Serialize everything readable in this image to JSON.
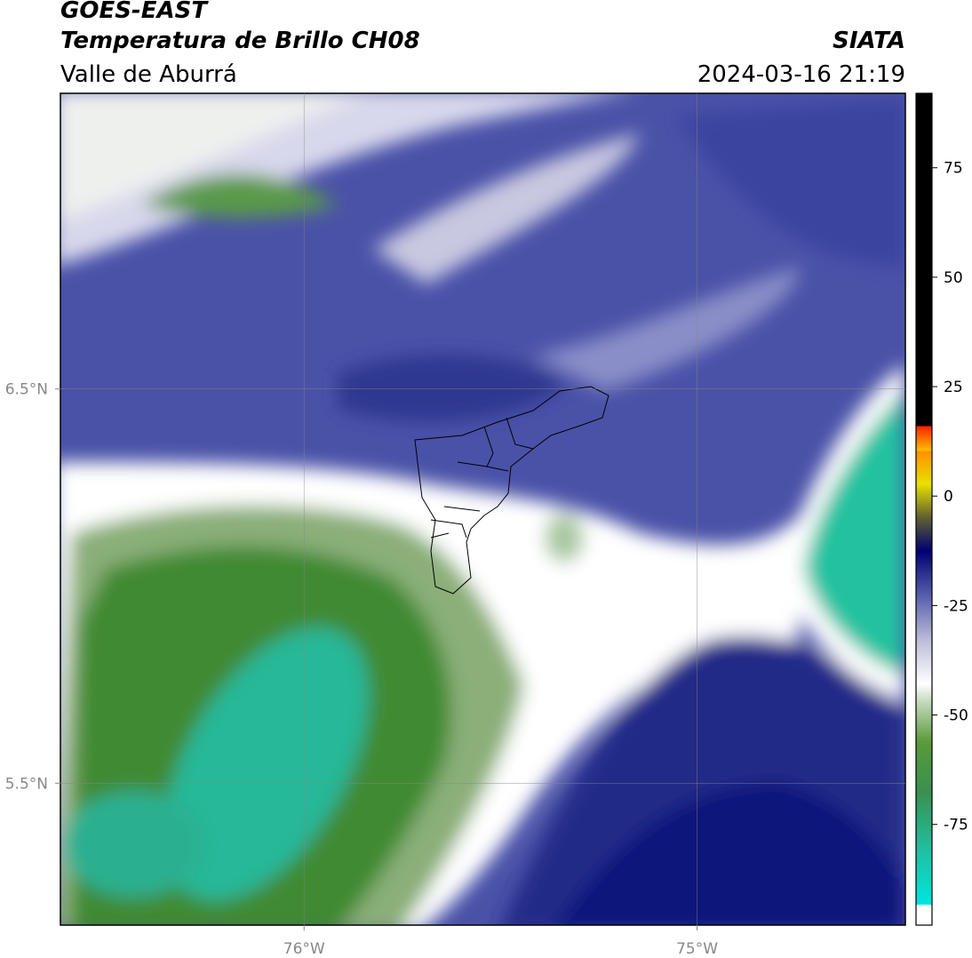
{
  "header": {
    "title": "GOES-EAST",
    "subtitle": "Temperatura de Brillo CH08",
    "region": "Valle de Aburrá",
    "source": "SIATA",
    "timestamp": "2024-03-16 21:19"
  },
  "map": {
    "xlim": [
      -76.62,
      -74.47
    ],
    "ylim": [
      5.14,
      7.25
    ],
    "xticks": [
      {
        "value": -76,
        "label": "76°W"
      },
      {
        "value": -75,
        "label": "75°W"
      }
    ],
    "yticks": [
      {
        "value": 6.5,
        "label": "6.5°N"
      },
      {
        "value": 5.5,
        "label": "5.5°N"
      }
    ],
    "grid": true
  },
  "colorbar": {
    "lim": [
      -98,
      92
    ],
    "ticks": [
      75,
      50,
      25,
      0,
      -25,
      -50,
      -75
    ]
  }
}
